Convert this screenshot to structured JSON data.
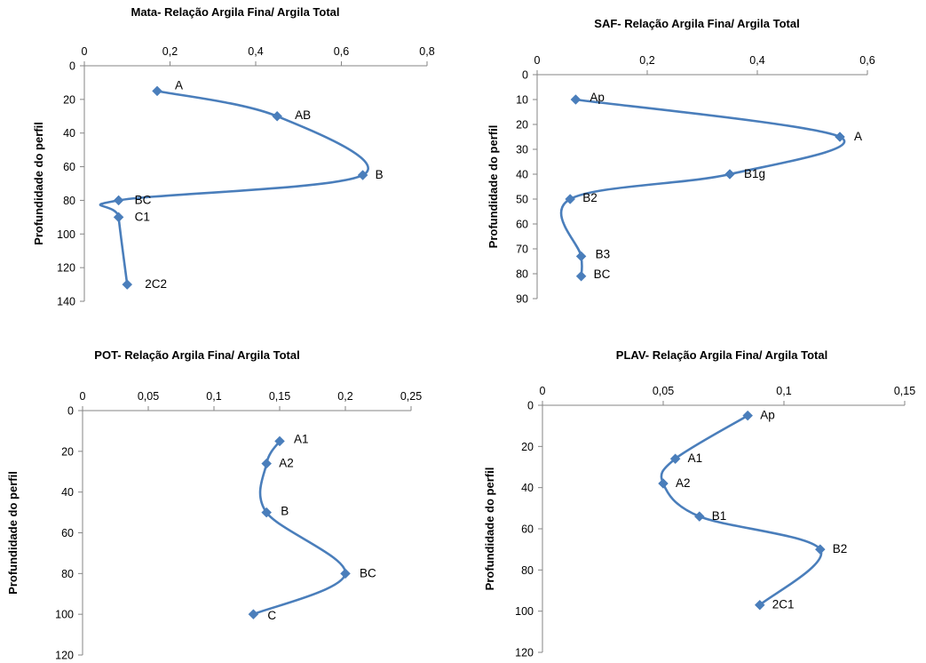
{
  "chart_data": [
    {
      "type": "line",
      "title": "Mata- Relação Argila Fina/ Argila Total",
      "ylabel": "Profundidade do perfil",
      "xlabel": "",
      "xlim": [
        0,
        0.8
      ],
      "ylim": [
        0,
        140
      ],
      "y_reversed": true,
      "x_axis_position": "top",
      "xticks": [
        "0",
        "0,2",
        "0,4",
        "0,6",
        "0,8"
      ],
      "yticks": [
        "0",
        "20",
        "40",
        "60",
        "80",
        "100",
        "120",
        "140"
      ],
      "series_color": "#4a7ebb",
      "smooth": true,
      "points": [
        {
          "label": "A",
          "x": 0.17,
          "y": 15
        },
        {
          "label": "AB",
          "x": 0.45,
          "y": 30
        },
        {
          "label": "B",
          "x": 0.65,
          "y": 65
        },
        {
          "label": "BC",
          "x": 0.08,
          "y": 80
        },
        {
          "label": "C1",
          "x": 0.08,
          "y": 90
        },
        {
          "label": "2C2",
          "x": 0.1,
          "y": 130
        }
      ]
    },
    {
      "type": "line",
      "title": "SAF- Relação Argila Fina/ Argila Total",
      "ylabel": "Profundidade do perfil",
      "xlabel": "",
      "xlim": [
        0,
        0.6
      ],
      "ylim": [
        0,
        90
      ],
      "y_reversed": true,
      "x_axis_position": "top",
      "xticks": [
        "0",
        "0,2",
        "0,4",
        "0,6"
      ],
      "yticks": [
        "0",
        "10",
        "20",
        "30",
        "40",
        "50",
        "60",
        "70",
        "80",
        "90"
      ],
      "series_color": "#4a7ebb",
      "smooth": true,
      "points": [
        {
          "label": "Ap",
          "x": 0.07,
          "y": 10
        },
        {
          "label": "A",
          "x": 0.55,
          "y": 25
        },
        {
          "label": "B1g",
          "x": 0.35,
          "y": 40
        },
        {
          "label": "B2",
          "x": 0.06,
          "y": 50
        },
        {
          "label": "B3",
          "x": 0.08,
          "y": 73
        },
        {
          "label": "BC",
          "x": 0.08,
          "y": 81
        }
      ]
    },
    {
      "type": "line",
      "title": "POT- Relação Argila Fina/ Argila Total",
      "ylabel": "Profundidade do perfil",
      "xlabel": "",
      "xlim": [
        0,
        0.25
      ],
      "ylim": [
        0,
        120
      ],
      "y_reversed": true,
      "x_axis_position": "top",
      "xticks": [
        "0",
        "0,05",
        "0,1",
        "0,15",
        "0,2",
        "0,25"
      ],
      "yticks": [
        "0",
        "20",
        "40",
        "60",
        "80",
        "100",
        "120"
      ],
      "series_color": "#4a7ebb",
      "smooth": true,
      "points": [
        {
          "label": "A1",
          "x": 0.15,
          "y": 15
        },
        {
          "label": "A2",
          "x": 0.14,
          "y": 26
        },
        {
          "label": "B",
          "x": 0.14,
          "y": 50
        },
        {
          "label": "BC",
          "x": 0.2,
          "y": 80
        },
        {
          "label": "C",
          "x": 0.13,
          "y": 100
        }
      ]
    },
    {
      "type": "line",
      "title": "PLAV- Relação Argila Fina/ Argila Total",
      "ylabel": "Profundidade do perfil",
      "xlabel": "",
      "xlim": [
        0,
        0.15
      ],
      "ylim": [
        0,
        120
      ],
      "y_reversed": true,
      "x_axis_position": "top",
      "xticks": [
        "0",
        "0,05",
        "0,1",
        "0,15"
      ],
      "yticks": [
        "0",
        "20",
        "40",
        "60",
        "80",
        "100",
        "120"
      ],
      "series_color": "#4a7ebb",
      "smooth": true,
      "points": [
        {
          "label": "Ap",
          "x": 0.085,
          "y": 5
        },
        {
          "label": "A1",
          "x": 0.055,
          "y": 26
        },
        {
          "label": "A2",
          "x": 0.05,
          "y": 38
        },
        {
          "label": "B1",
          "x": 0.065,
          "y": 54
        },
        {
          "label": "B2",
          "x": 0.115,
          "y": 70
        },
        {
          "label": "2C1",
          "x": 0.09,
          "y": 97
        }
      ]
    }
  ]
}
